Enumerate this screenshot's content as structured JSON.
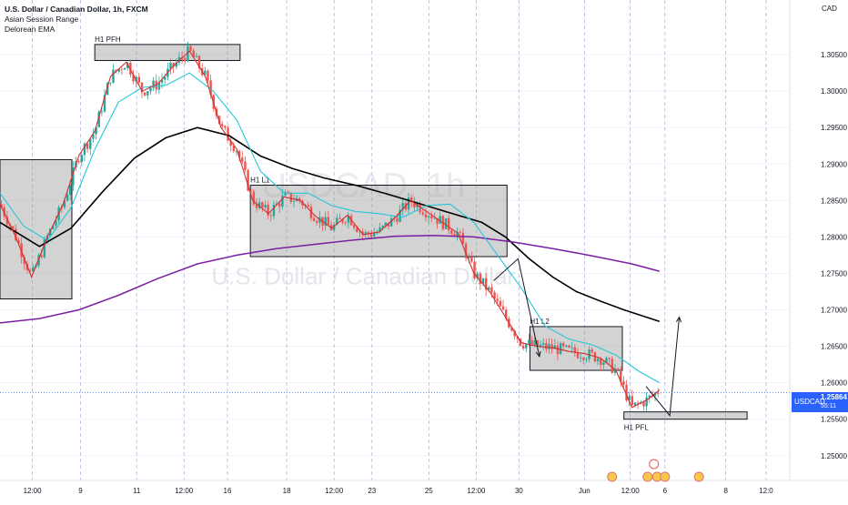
{
  "legend": {
    "title": "U.S. Dollar / Canadian Dollar, 1h, FXCM",
    "indicators": [
      "Asian Session Range",
      "Delorean EMA"
    ]
  },
  "watermark": {
    "symbol": "USDCAD, 1h",
    "name": "U.S. Dollar / Canadian Dollar"
  },
  "currency_label": "CAD",
  "last_price": {
    "symbol": "USDCAD",
    "price": "1.25864",
    "countdown": "55:11"
  },
  "colors": {
    "bull": "#26a69a",
    "bear": "#ef5350",
    "ema_fast": "#d32f2f",
    "ema_mid": "#26c6da",
    "ema_slow": "#000000",
    "ema_long": "#7b1fa2",
    "zone_fill": "#9e9e9e",
    "session_line": "#5c6bc0"
  },
  "chart_data": {
    "type": "candlestick",
    "symbol": "USDCAD",
    "timeframe": "1h",
    "y_ticks": [
      "1.30500",
      "1.30000",
      "1.29500",
      "1.29000",
      "1.28500",
      "1.28000",
      "1.27500",
      "1.27000",
      "1.26500",
      "1.26000",
      "1.25500",
      "1.25000"
    ],
    "y_tick_values": [
      1.305,
      1.3,
      1.295,
      1.29,
      1.285,
      1.28,
      1.275,
      1.27,
      1.265,
      1.26,
      1.255,
      1.25
    ],
    "ylim": [
      1.2466,
      1.3125
    ],
    "xlim": [
      0,
      100
    ],
    "x_tick_labels": [
      "12:00",
      "9",
      "11",
      "12:00",
      "16",
      "18",
      "12:00",
      "23",
      "25",
      "12:00",
      "30",
      "Jun",
      "12:00",
      "6",
      "8",
      "12:0"
    ],
    "x_tick_positions": [
      4.1,
      10.2,
      17.3,
      23.3,
      28.8,
      36.3,
      42.3,
      47.1,
      54.3,
      60.3,
      65.7,
      74.0,
      79.8,
      84.2,
      91.9,
      97.0
    ],
    "last_price": 1.25864,
    "zones": [
      {
        "label": "",
        "x0": 0.0,
        "x1": 9.1,
        "y0": 1.2715,
        "y1": 1.2906
      },
      {
        "label": "H1 PFH",
        "x0": 12.0,
        "x1": 30.4,
        "y0": 1.3042,
        "y1": 1.3064
      },
      {
        "label": "H1 L1",
        "x0": 31.7,
        "x1": 64.2,
        "y0": 1.2773,
        "y1": 1.2871
      },
      {
        "label": "H1 L2",
        "x0": 67.1,
        "x1": 78.8,
        "y0": 1.2617,
        "y1": 1.2677
      },
      {
        "label": "H1 PFL",
        "x0": 79.0,
        "x1": 94.6,
        "y0": 1.255,
        "y1": 1.256
      }
    ],
    "arrows": [
      {
        "points": [
          [
            62.5,
            1.274
          ],
          [
            65.6,
            1.277
          ],
          [
            68.3,
            1.2636
          ]
        ]
      },
      {
        "points": [
          [
            81.8,
            1.2595
          ],
          [
            84.8,
            1.2555
          ],
          [
            86.0,
            1.269
          ]
        ]
      }
    ],
    "series": [
      {
        "name": "",
        "role": "ema_slow",
        "x": [
          0,
          5,
          9,
          13,
          17,
          21,
          25,
          29,
          33,
          37,
          41,
          45,
          49,
          53,
          57,
          61,
          64,
          67,
          70,
          73,
          76,
          79,
          83.5
        ],
        "y": [
          1.282,
          1.2787,
          1.2812,
          1.2862,
          1.2908,
          1.2936,
          1.295,
          1.2939,
          1.2911,
          1.2894,
          1.2881,
          1.2871,
          1.2859,
          1.2846,
          1.2833,
          1.282,
          1.28,
          1.277,
          1.2745,
          1.2725,
          1.2712,
          1.27,
          1.2684
        ]
      },
      {
        "name": "",
        "role": "ema_long",
        "x": [
          0,
          5,
          10,
          15,
          20,
          25,
          30,
          35,
          40,
          45,
          50,
          55,
          60,
          65,
          70,
          75,
          80,
          83.5
        ],
        "y": [
          1.2682,
          1.2688,
          1.27,
          1.272,
          1.2743,
          1.2763,
          1.2775,
          1.2784,
          1.279,
          1.2796,
          1.2801,
          1.2802,
          1.28,
          1.2793,
          1.2784,
          1.2774,
          1.2763,
          1.2753
        ]
      },
      {
        "name": "",
        "role": "ema_mid",
        "x": [
          0,
          3,
          6,
          9,
          12,
          15,
          18,
          21,
          24,
          27,
          30,
          33,
          36,
          39,
          42,
          45,
          48,
          51,
          54,
          57,
          60,
          63,
          66,
          69,
          72,
          75,
          78,
          81,
          83.5
        ],
        "y": [
          1.286,
          1.2815,
          1.2795,
          1.284,
          1.292,
          1.2985,
          1.3005,
          1.3008,
          1.3025,
          1.3,
          1.296,
          1.289,
          1.286,
          1.286,
          1.2843,
          1.2835,
          1.2832,
          1.2827,
          1.2843,
          1.2845,
          1.282,
          1.2775,
          1.273,
          1.2678,
          1.266,
          1.2652,
          1.2638,
          1.2615,
          1.26
        ]
      },
      {
        "name": "",
        "role": "ema_fast",
        "x": [
          0,
          2,
          4,
          6,
          8,
          10,
          12,
          14,
          16,
          18,
          20,
          22,
          24,
          26,
          28,
          30,
          32,
          34,
          36,
          38,
          40,
          42,
          44,
          46,
          48,
          50,
          52,
          54,
          56,
          58,
          60,
          62,
          64,
          66,
          68,
          70,
          72,
          74,
          76,
          78,
          80,
          82,
          83.5
        ],
        "y": [
          1.2845,
          1.28,
          1.2745,
          1.28,
          1.2845,
          1.2912,
          1.2945,
          1.302,
          1.304,
          1.3,
          1.301,
          1.3035,
          1.3055,
          1.302,
          1.295,
          1.292,
          1.285,
          1.2832,
          1.2855,
          1.285,
          1.2828,
          1.2812,
          1.283,
          1.2803,
          1.2807,
          1.2826,
          1.285,
          1.2835,
          1.282,
          1.2805,
          1.275,
          1.2725,
          1.269,
          1.2655,
          1.265,
          1.2648,
          1.2643,
          1.264,
          1.2634,
          1.2617,
          1.2566,
          1.2577,
          1.259
        ]
      }
    ]
  }
}
